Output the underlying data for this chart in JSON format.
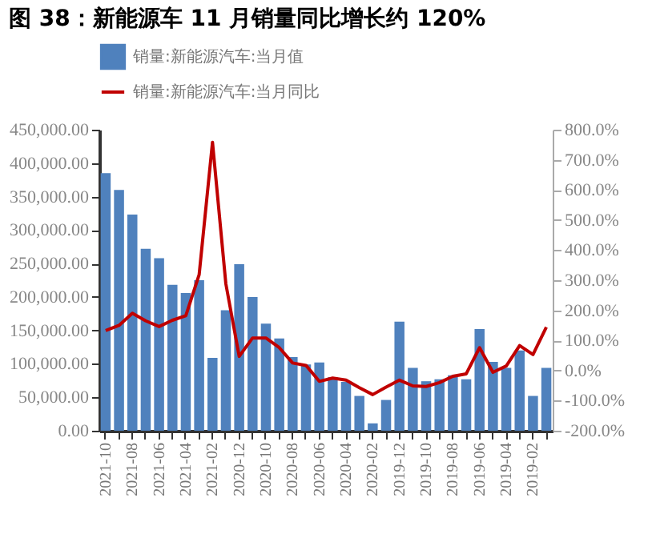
{
  "chart_data": {
    "type": "bar",
    "title": "图 38：新能源车 11 月销量同比增长约 120%",
    "categories": [
      "2021-10",
      null,
      "2021-08",
      null,
      "2021-06",
      null,
      "2021-04",
      null,
      "2021-02",
      null,
      "2020-12",
      null,
      "2020-10",
      null,
      "2020-08",
      null,
      "2020-06",
      null,
      "2020-04",
      null,
      "2020-02",
      null,
      "2019-12",
      null,
      "2019-10",
      null,
      "2019-08",
      null,
      "2019-06",
      null,
      "2019-04",
      null,
      "2019-02",
      null
    ],
    "series": [
      {
        "name": "销量:新能源汽车:当月值",
        "color": "#4f81bd",
        "values": [
          385000,
          360000,
          323000,
          272000,
          258000,
          218000,
          206000,
          225000,
          109000,
          180000,
          249000,
          200000,
          160000,
          138000,
          110000,
          99000,
          102000,
          80000,
          73000,
          52000,
          11000,
          46000,
          163000,
          94000,
          74000,
          77000,
          83000,
          77000,
          152000,
          103000,
          94000,
          120000,
          52000,
          94000
        ]
      },
      {
        "name": "销量:新能源汽车:当月同比",
        "type": "line",
        "axis": "y2",
        "color": "#c00000",
        "values": [
          133,
          150,
          190,
          165,
          146,
          167,
          182,
          318,
          758,
          288,
          47,
          108,
          108,
          76,
          25,
          17,
          -36,
          -25,
          -32,
          -57,
          -80,
          -55,
          -32,
          -51,
          -53,
          -40,
          -19,
          -11,
          76,
          -6,
          15,
          83,
          53,
          144
        ]
      }
    ],
    "ylim": [
      0,
      450000
    ],
    "yticks": [
      {
        "value": 0,
        "label": "0.00"
      },
      {
        "value": 50000,
        "label": "50,000.00"
      },
      {
        "value": 100000,
        "label": "100,000.00"
      },
      {
        "value": 150000,
        "label": "150,000.00"
      },
      {
        "value": 200000,
        "label": "200,000.00"
      },
      {
        "value": 250000,
        "label": "250,000.00"
      },
      {
        "value": 300000,
        "label": "300,000.00"
      },
      {
        "value": 350000,
        "label": "350,000.00"
      },
      {
        "value": 400000,
        "label": "400,000.00"
      },
      {
        "value": 450000,
        "label": "450,000.00"
      }
    ],
    "y2lim": [
      -200,
      800
    ],
    "y2ticks": [
      {
        "value": -200,
        "label": "-200.0%"
      },
      {
        "value": -100,
        "label": "-100.0%"
      },
      {
        "value": 0,
        "label": "0.0%"
      },
      {
        "value": 100,
        "label": "100.0%"
      },
      {
        "value": 200,
        "label": "200.0%"
      },
      {
        "value": 300,
        "label": "300.0%"
      },
      {
        "value": 400,
        "label": "400.0%"
      },
      {
        "value": 500,
        "label": "500.0%"
      },
      {
        "value": 600,
        "label": "600.0%"
      },
      {
        "value": 700,
        "label": "700.0%"
      },
      {
        "value": 800,
        "label": "800.0%"
      }
    ],
    "legend": "top"
  }
}
